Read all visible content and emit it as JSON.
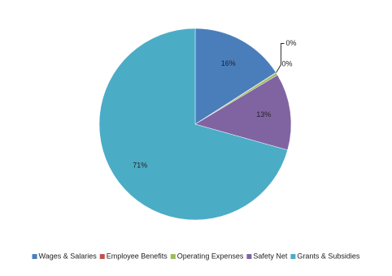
{
  "chart_data": {
    "type": "pie",
    "categories": [
      "Wages & Salaries",
      "Employee Benefits",
      "Operating Expenses",
      "Safety Net",
      "Grants & Subsidies"
    ],
    "values": [
      16,
      0.1,
      0.4,
      13,
      71
    ],
    "value_labels": [
      "16%",
      "0%",
      "0%",
      "13%",
      "71%"
    ],
    "colors": [
      "#4a7ebb",
      "#c0504d",
      "#9bbb59",
      "#8064a2",
      "#4bacc6"
    ]
  }
}
